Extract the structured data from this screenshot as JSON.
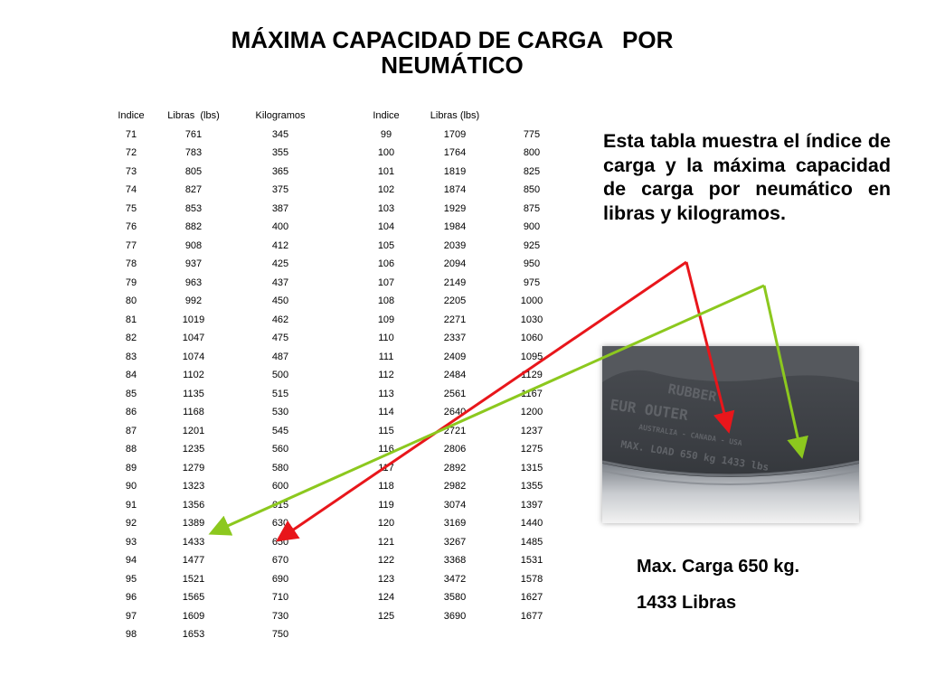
{
  "title_line1": "MÁXIMA CAPACIDAD DE CARGA   POR",
  "title_line2": "NEUMÁTICO",
  "left_headers": [
    "Indice",
    "Libras  (lbs)",
    "Kilogramos"
  ],
  "right_headers": [
    "Indice",
    "Libras (lbs)",
    ""
  ],
  "left_rows": [
    [
      "71",
      "761",
      "345"
    ],
    [
      "72",
      "783",
      "355"
    ],
    [
      "73",
      "805",
      "365"
    ],
    [
      "74",
      "827",
      "375"
    ],
    [
      "75",
      "853",
      "387"
    ],
    [
      "76",
      "882",
      "400"
    ],
    [
      "77",
      "908",
      "412"
    ],
    [
      "78",
      "937",
      "425"
    ],
    [
      "79",
      "963",
      "437"
    ],
    [
      "80",
      "992",
      "450"
    ],
    [
      "81",
      "1019",
      "462"
    ],
    [
      "82",
      "1047",
      "475"
    ],
    [
      "83",
      "1074",
      "487"
    ],
    [
      "84",
      "1102",
      "500"
    ],
    [
      "85",
      "1135",
      "515"
    ],
    [
      "86",
      "1168",
      "530"
    ],
    [
      "87",
      "1201",
      "545"
    ],
    [
      "88",
      "1235",
      "560"
    ],
    [
      "89",
      "1279",
      "580"
    ],
    [
      "90",
      "1323",
      "600"
    ],
    [
      "91",
      "1356",
      "615"
    ],
    [
      "92",
      "1389",
      "630"
    ],
    [
      "93",
      "1433",
      "650"
    ],
    [
      "94",
      "1477",
      "670"
    ],
    [
      "95",
      "1521",
      "690"
    ],
    [
      "96",
      "1565",
      "710"
    ],
    [
      "97",
      "1609",
      "730"
    ],
    [
      "98",
      "1653",
      "750"
    ]
  ],
  "right_rows": [
    [
      "99",
      "1709",
      "775"
    ],
    [
      "100",
      "1764",
      "800"
    ],
    [
      "101",
      "1819",
      "825"
    ],
    [
      "102",
      "1874",
      "850"
    ],
    [
      "103",
      "1929",
      "875"
    ],
    [
      "104",
      "1984",
      "900"
    ],
    [
      "105",
      "2039",
      "925"
    ],
    [
      "106",
      "2094",
      "950"
    ],
    [
      "107",
      "2149",
      "975"
    ],
    [
      "108",
      "2205",
      "1000"
    ],
    [
      "109",
      "2271",
      "1030"
    ],
    [
      "110",
      "2337",
      "1060"
    ],
    [
      "111",
      "2409",
      "1095"
    ],
    [
      "112",
      "2484",
      "1129"
    ],
    [
      "113",
      "2561",
      "1167"
    ],
    [
      "114",
      "2640",
      "1200"
    ],
    [
      "115",
      "2721",
      "1237"
    ],
    [
      "116",
      "2806",
      "1275"
    ],
    [
      "117",
      "2892",
      "1315"
    ],
    [
      "118",
      "2982",
      "1355"
    ],
    [
      "119",
      "3074",
      "1397"
    ],
    [
      "120",
      "3169",
      "1440"
    ],
    [
      "121",
      "3267",
      "1485"
    ],
    [
      "122",
      "3368",
      "1531"
    ],
    [
      "123",
      "3472",
      "1578"
    ],
    [
      "124",
      "3580",
      "1627"
    ],
    [
      "125",
      "3690",
      "1677"
    ]
  ],
  "description": "Esta tabla muestra el índice de carga y la máxima capacidad de carga por neumático en libras y kilogramos.",
  "tire_text": {
    "line1": "RUBBER",
    "line2": "EUR OUTER",
    "line3": "AUSTRALIA - CANADA - USA",
    "line4": "MAX. LOAD 650 kg 1433 lbs"
  },
  "caption_kg": "Max. Carga 650 kg.",
  "caption_lbs": "1433 Libras",
  "colors": {
    "red_arrow": "#e8161b",
    "green_arrow": "#8cc81e"
  }
}
